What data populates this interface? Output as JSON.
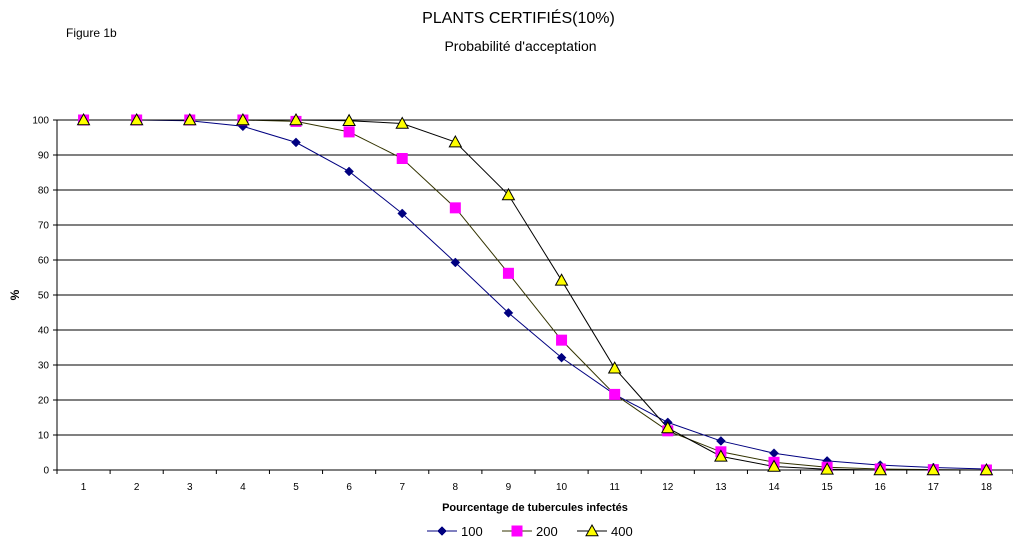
{
  "figure_label": "Figure 1b",
  "chart_data": {
    "type": "line",
    "title": "PLANTS CERTIFIÉS(10%)",
    "subtitle": "Probabilité d'acceptation",
    "xlabel": "Pourcentage de tubercules infectés",
    "ylabel": "%",
    "x": [
      1,
      2,
      3,
      4,
      5,
      6,
      7,
      8,
      9,
      10,
      11,
      12,
      13,
      14,
      15,
      16,
      17,
      18
    ],
    "ylim": [
      0,
      100
    ],
    "yticks": [
      0,
      10,
      20,
      30,
      40,
      50,
      60,
      70,
      80,
      90,
      100
    ],
    "grid": true,
    "legend": "bottom",
    "series": [
      {
        "name": "100",
        "marker": "diamond",
        "color": "#000080",
        "markerColor": "#000080",
        "values": [
          100,
          100,
          99.8,
          98.2,
          93.6,
          85.3,
          73.3,
          59.3,
          44.9,
          32.1,
          21.6,
          13.6,
          8.3,
          4.8,
          2.6,
          1.4,
          0.7,
          0.3
        ]
      },
      {
        "name": "200",
        "marker": "square",
        "color": "#333300",
        "markerColor": "#ff00ff",
        "values": [
          100,
          100,
          100,
          100,
          99.6,
          96.6,
          89.0,
          74.9,
          56.2,
          37.1,
          21.6,
          11.2,
          5.2,
          2.2,
          0.8,
          0.3,
          0.1,
          0
        ]
      },
      {
        "name": "400",
        "marker": "triangle",
        "color": "#000000",
        "markerColor": "#ffff00",
        "values": [
          100,
          100,
          100,
          100,
          100,
          99.8,
          99.0,
          93.7,
          78.6,
          54.2,
          29.1,
          12.0,
          3.9,
          1.0,
          0.2,
          0,
          0,
          0
        ]
      }
    ]
  }
}
